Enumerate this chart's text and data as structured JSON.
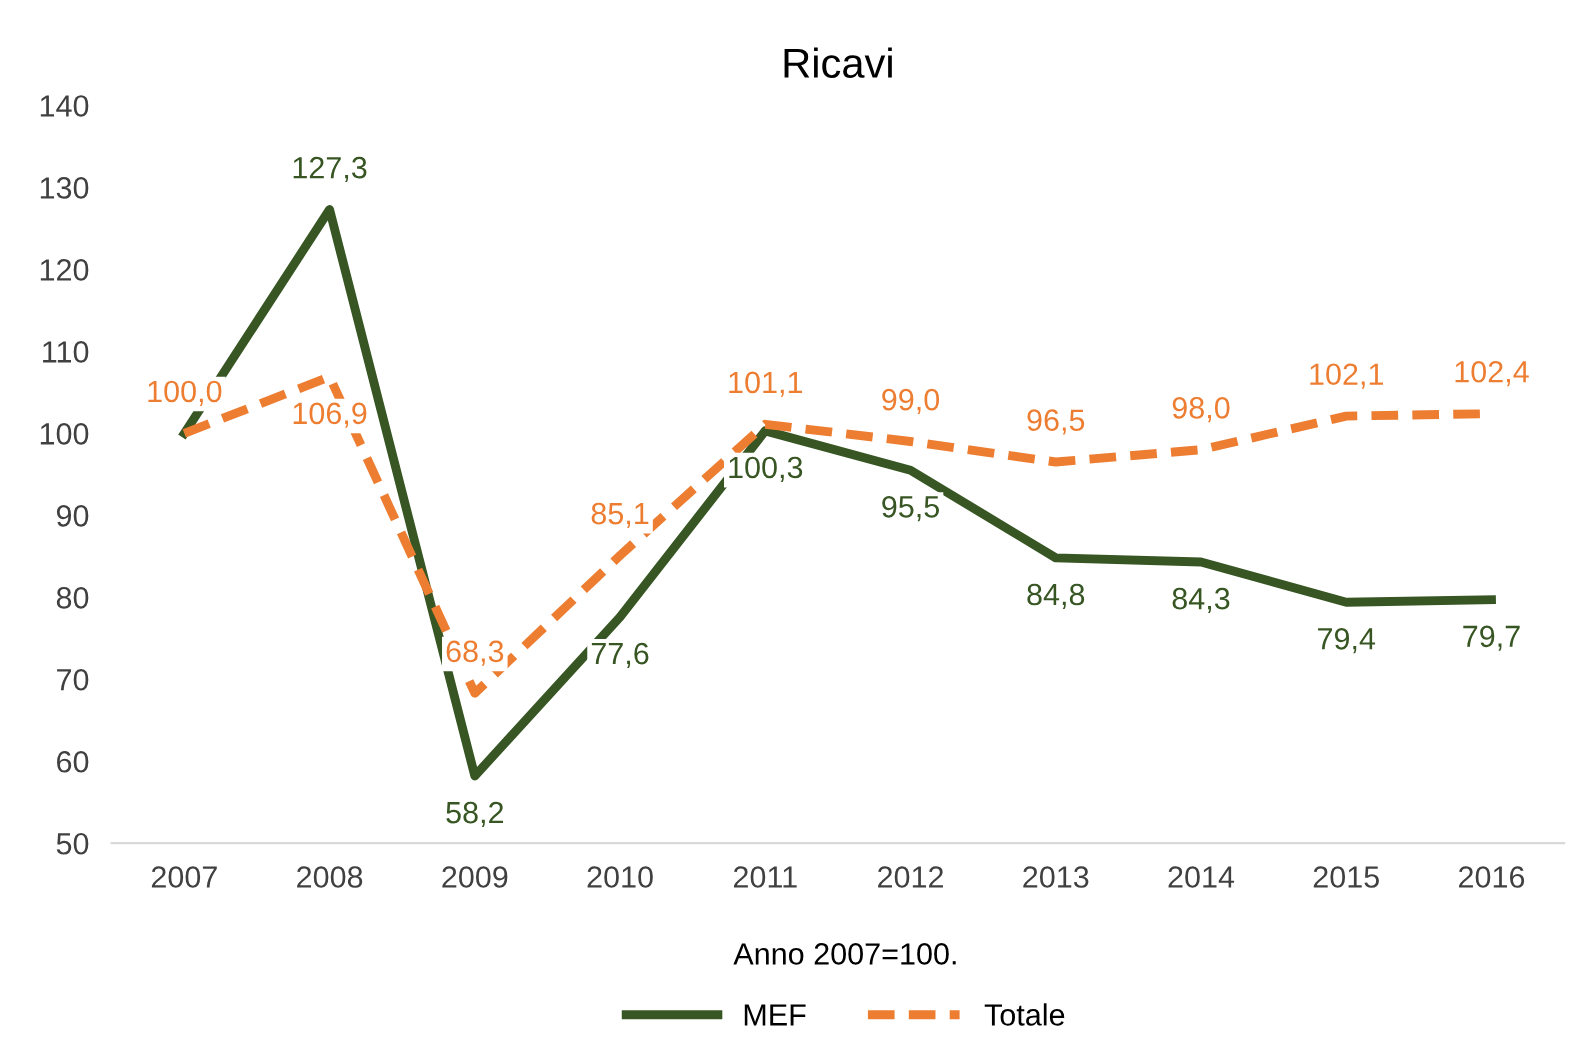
{
  "chart_data": {
    "type": "line",
    "title": "Ricavi",
    "categories": [
      "2007",
      "2008",
      "2009",
      "2010",
      "2011",
      "2012",
      "2013",
      "2014",
      "2015",
      "2016"
    ],
    "series": [
      {
        "name": "MEF",
        "color": "#375623",
        "line_style": "solid",
        "values": [
          100.0,
          127.3,
          58.2,
          77.6,
          100.3,
          95.5,
          84.8,
          84.3,
          79.4,
          79.7
        ],
        "value_labels": [
          null,
          "127,3",
          "58,2",
          "77,6",
          "100,3",
          "95,5",
          "84,8",
          "84,3",
          "79,4",
          "79,7"
        ]
      },
      {
        "name": "Totale",
        "color": "#ed7d31",
        "line_style": "dashed",
        "values": [
          100.0,
          106.9,
          68.3,
          85.1,
          101.1,
          99.0,
          96.5,
          98.0,
          102.1,
          102.4
        ],
        "value_labels": [
          "100,0",
          "106,9",
          "68,3",
          "85,1",
          "101,1",
          "99,0",
          "96,5",
          "98,0",
          "102,1",
          "102,4"
        ]
      }
    ],
    "ylim": [
      50,
      140
    ],
    "yticks": [
      50,
      60,
      70,
      80,
      90,
      100,
      110,
      120,
      130,
      140
    ],
    "grid": false,
    "legend": "bottom",
    "marker": "none",
    "annotations": [
      "Anno 2007=100."
    ]
  }
}
